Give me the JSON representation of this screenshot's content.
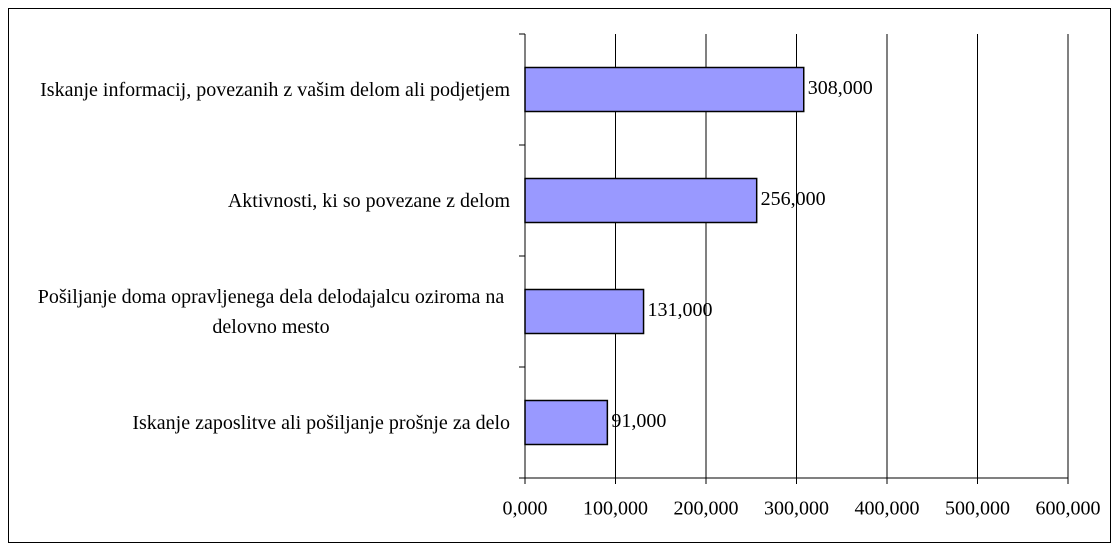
{
  "chart_data": {
    "type": "bar",
    "orientation": "horizontal",
    "categories": [
      "Iskanje informacij, povezanih z vašim delom ali podjetjem",
      "Aktivnosti, ki so povezane z delom",
      "Pošiljanje doma opravljenega dela delodajalcu oziroma na delovno mesto",
      "Iskanje zaposlitve ali pošiljanje prošnje za delo"
    ],
    "values": [
      308000,
      256000,
      131000,
      91000
    ],
    "value_labels": [
      "308,000",
      "256,000",
      "131,000",
      "91,000"
    ],
    "color": "#9999ff",
    "xlim": [
      0,
      600000
    ],
    "xticks": [
      {
        "value": 0,
        "label": "0,000"
      },
      {
        "value": 100000,
        "label": "100,000"
      },
      {
        "value": 200000,
        "label": "200,000"
      },
      {
        "value": 300000,
        "label": "300,000"
      },
      {
        "value": 400000,
        "label": "400,000"
      },
      {
        "value": 500000,
        "label": "500,000"
      },
      {
        "value": 600000,
        "label": "600,000"
      }
    ],
    "grid": true
  }
}
